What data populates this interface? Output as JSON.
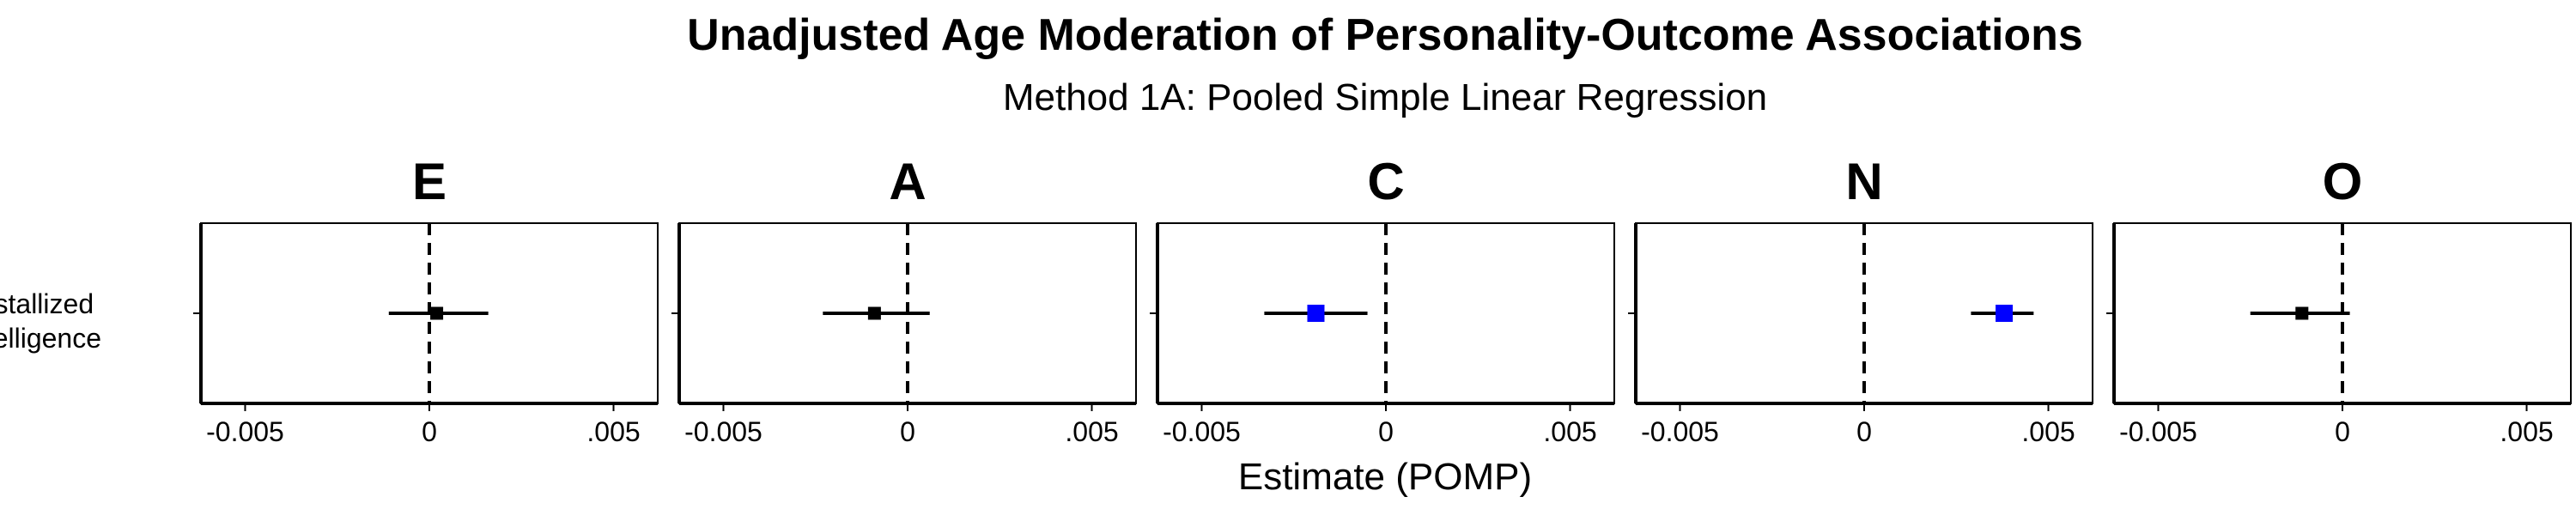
{
  "chart_data": {
    "type": "scatter",
    "subtype": "forest-plot-facets",
    "title": "Unadjusted Age Moderation of Personality-Outcome Associations",
    "subtitle": "Method 1A: Pooled Simple Linear Regression",
    "xlabel": "Estimate (POMP)",
    "ylabel": "",
    "xlim": [
      -0.0062,
      0.0062
    ],
    "x_ticks": [
      -0.005,
      0,
      0.005
    ],
    "x_tick_labels": [
      "-0.005",
      "0",
      ".005"
    ],
    "reference_line": 0,
    "y_categories": [
      "Crystallized Intelligence"
    ],
    "y_category_lines": [
      "Crystallized",
      "Intelligence"
    ],
    "grid": false,
    "legend": "none",
    "colors": {
      "not_significant": "#000000",
      "significant": "#0000ff"
    },
    "panels": [
      {
        "name": "E",
        "estimate": 0.0002,
        "ci_low": -0.0011,
        "ci_high": 0.0016,
        "significant": false
      },
      {
        "name": "A",
        "estimate": -0.0009,
        "ci_low": -0.0023,
        "ci_high": 0.0006,
        "significant": false
      },
      {
        "name": "C",
        "estimate": -0.0019,
        "ci_low": -0.0033,
        "ci_high": -0.0005,
        "significant": true
      },
      {
        "name": "N",
        "estimate": 0.0038,
        "ci_low": 0.0029,
        "ci_high": 0.0046,
        "significant": true
      },
      {
        "name": "O",
        "estimate": -0.0011,
        "ci_low": -0.0025,
        "ci_high": 0.0002,
        "significant": false
      }
    ]
  }
}
